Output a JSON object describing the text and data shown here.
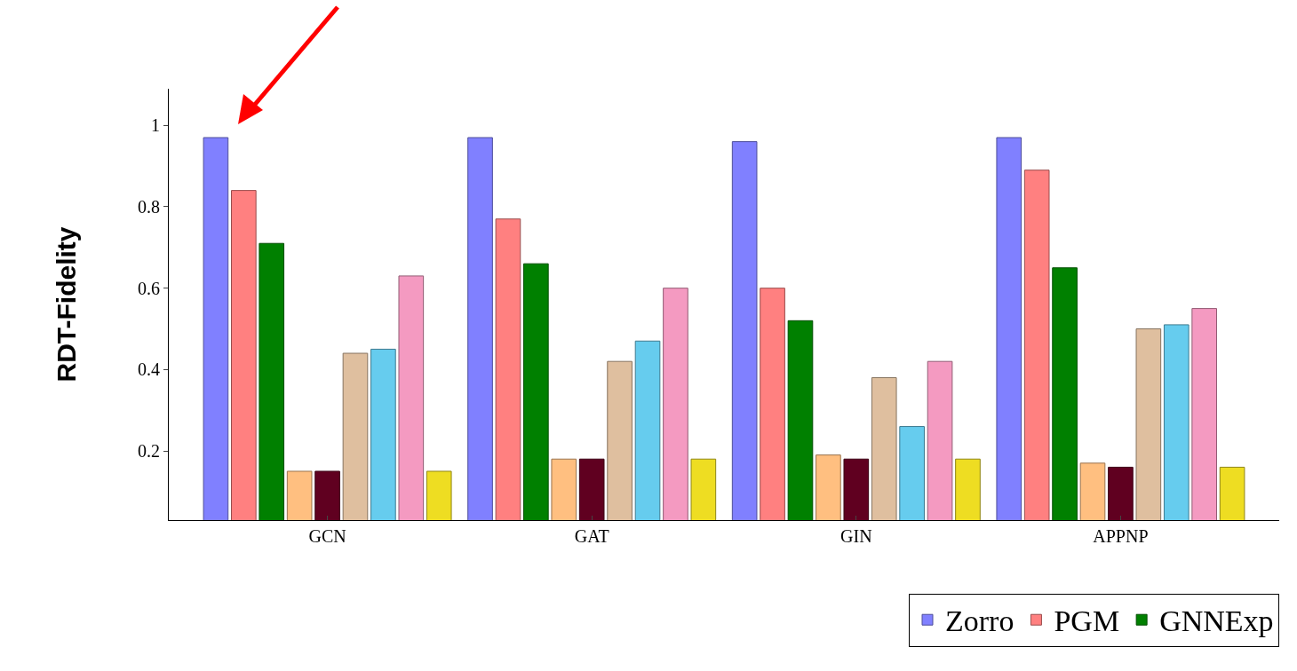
{
  "chart_data": {
    "type": "bar",
    "ylabel": "RDT-Fidelity",
    "categories": [
      "GCN",
      "GAT",
      "GIN",
      "APPNP"
    ],
    "series": [
      {
        "name": "Zorro",
        "color": "#8080ff",
        "values": [
          0.97,
          0.97,
          0.96,
          0.97
        ]
      },
      {
        "name": "PGM",
        "color": "#ff8080",
        "values": [
          0.84,
          0.77,
          0.6,
          0.89
        ]
      },
      {
        "name": "GNNExp",
        "color": "#008000",
        "values": [
          0.71,
          0.66,
          0.52,
          0.65
        ]
      },
      {
        "color": "#ffbf80",
        "values": [
          0.15,
          0.18,
          0.19,
          0.17
        ]
      },
      {
        "color": "#600020",
        "values": [
          0.15,
          0.18,
          0.18,
          0.16
        ]
      },
      {
        "color": "#dfbf9f",
        "values": [
          0.44,
          0.42,
          0.38,
          0.5
        ]
      },
      {
        "color": "#66ccee",
        "values": [
          0.45,
          0.47,
          0.26,
          0.51
        ]
      },
      {
        "color": "#f49ac1",
        "values": [
          0.63,
          0.6,
          0.42,
          0.55
        ]
      },
      {
        "color": "#eedd22",
        "values": [
          0.15,
          0.18,
          0.18,
          0.16
        ]
      }
    ],
    "ylim": [
      0.03,
      1.09
    ],
    "yticks": [
      0.2,
      0.4,
      0.6,
      0.8,
      1
    ],
    "grid": false,
    "legend": "bottom right"
  }
}
